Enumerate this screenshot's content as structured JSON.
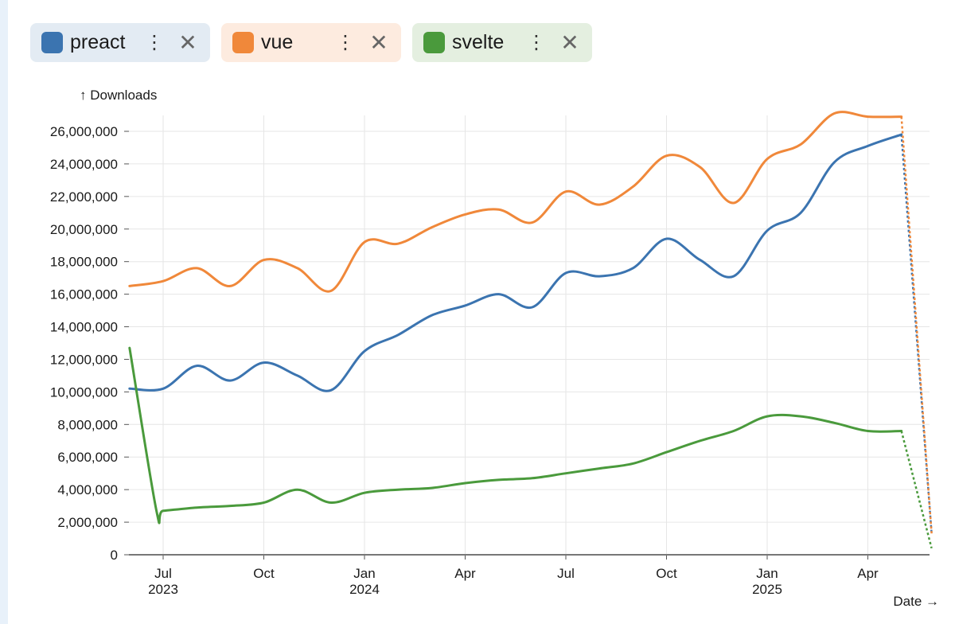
{
  "legend": {
    "items": [
      {
        "name": "preact",
        "color": "#3b74b0",
        "bg": "#e3ebf3",
        "more_icon": "more-vertical-icon",
        "close_icon": "close-icon"
      },
      {
        "name": "vue",
        "color": "#f0883a",
        "bg": "#fdebdf",
        "more_icon": "more-vertical-icon",
        "close_icon": "close-icon"
      },
      {
        "name": "svelte",
        "color": "#4a9a3c",
        "bg": "#e4efe0",
        "more_icon": "more-vertical-icon",
        "close_icon": "close-icon"
      }
    ],
    "more_glyph": "⋮",
    "close_glyph": "✕"
  },
  "chart_data": {
    "type": "line",
    "ylabel": "↑ Downloads",
    "xlabel": "Date →",
    "ylim": [
      0,
      27000000
    ],
    "y_ticks": [
      0,
      2000000,
      4000000,
      6000000,
      8000000,
      10000000,
      12000000,
      14000000,
      16000000,
      18000000,
      20000000,
      22000000,
      24000000,
      26000000
    ],
    "y_tick_labels": [
      "0",
      "2,000,000",
      "4,000,000",
      "6,000,000",
      "8,000,000",
      "10,000,000",
      "12,000,000",
      "14,000,000",
      "16,000,000",
      "18,000,000",
      "20,000,000",
      "22,000,000",
      "24,000,000",
      "26,000,000"
    ],
    "x_range_months": [
      -0.6,
      22.2
    ],
    "x_ticks": [
      {
        "m": 0,
        "label": "Jul",
        "year": "2023"
      },
      {
        "m": 3,
        "label": "Oct",
        "year": ""
      },
      {
        "m": 6,
        "label": "Jan",
        "year": "2024"
      },
      {
        "m": 9,
        "label": "Apr",
        "year": ""
      },
      {
        "m": 12,
        "label": "Jul",
        "year": ""
      },
      {
        "m": 15,
        "label": "Oct",
        "year": ""
      },
      {
        "m": 18,
        "label": "Jan",
        "year": "2025"
      },
      {
        "m": 21,
        "label": "Apr",
        "year": ""
      }
    ],
    "grid": true,
    "series": [
      {
        "name": "preact",
        "color": "#3b74b0",
        "x": [
          -1,
          0,
          1,
          2,
          3,
          4,
          5,
          6,
          7,
          8,
          9,
          10,
          11,
          12,
          13,
          14,
          15,
          16,
          17,
          18,
          19,
          20,
          21,
          22
        ],
        "values": [
          10200000,
          10200000,
          11600000,
          10700000,
          11800000,
          11000000,
          10100000,
          12500000,
          13500000,
          14700000,
          15300000,
          16000000,
          15200000,
          17300000,
          17100000,
          17600000,
          19400000,
          18100000,
          17100000,
          19900000,
          21000000,
          24100000,
          25100000,
          25800000
        ],
        "projected": {
          "x": [
            22,
            22.9
          ],
          "values": [
            25800000,
            1300000
          ]
        }
      },
      {
        "name": "vue",
        "color": "#f0883a",
        "x": [
          -1,
          0,
          1,
          2,
          3,
          4,
          5,
          6,
          7,
          8,
          9,
          10,
          11,
          12,
          13,
          14,
          15,
          16,
          17,
          18,
          19,
          20,
          21,
          22
        ],
        "values": [
          16500000,
          16800000,
          17600000,
          16500000,
          18100000,
          17600000,
          16200000,
          19200000,
          19100000,
          20100000,
          20900000,
          21200000,
          20400000,
          22300000,
          21500000,
          22600000,
          24500000,
          23800000,
          21600000,
          24300000,
          25200000,
          27100000,
          26900000,
          26900000
        ],
        "projected": {
          "x": [
            22,
            22.9
          ],
          "values": [
            26900000,
            1300000
          ]
        }
      },
      {
        "name": "svelte",
        "color": "#4a9a3c",
        "x": [
          -1,
          -0.2,
          0,
          1,
          2,
          3,
          4,
          5,
          6,
          7,
          8,
          9,
          10,
          11,
          12,
          13,
          14,
          15,
          16,
          17,
          18,
          19,
          20,
          21,
          22
        ],
        "values": [
          12700000,
          2700000,
          2700000,
          2900000,
          3000000,
          3200000,
          4000000,
          3200000,
          3800000,
          4000000,
          4100000,
          4400000,
          4600000,
          4700000,
          5000000,
          5300000,
          5600000,
          6300000,
          7000000,
          7600000,
          8500000,
          8500000,
          8100000,
          7600000,
          7600000
        ],
        "projected": {
          "x": [
            22,
            22.9
          ],
          "values": [
            7600000,
            400000
          ]
        }
      }
    ]
  }
}
